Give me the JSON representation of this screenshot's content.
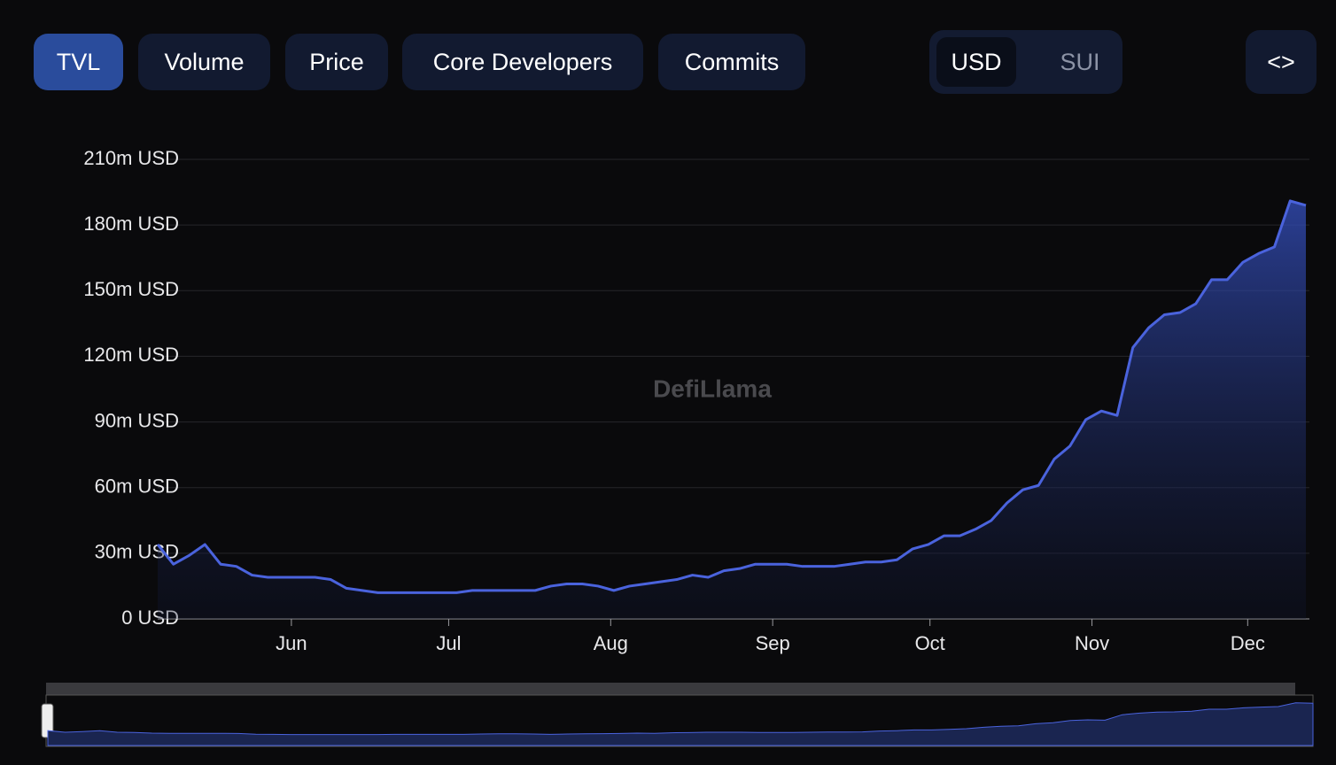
{
  "tabs": [
    "TVL",
    "Volume",
    "Price",
    "Core Developers",
    "Commits"
  ],
  "active_tab": 0,
  "currency": [
    "USD",
    "SUI"
  ],
  "active_currency": 0,
  "embed_button": "<>",
  "watermark": "DefiLlama",
  "chart_data": {
    "type": "area",
    "color": "#4a63dd",
    "grid": true,
    "values": [
      34,
      25,
      29,
      34,
      25,
      24,
      20,
      19,
      19,
      19,
      19,
      18,
      14,
      13,
      12,
      12,
      12,
      12,
      12,
      12,
      13,
      13,
      13,
      13,
      13,
      15,
      16,
      16,
      15,
      13,
      15,
      16,
      17,
      18,
      20,
      19,
      22,
      23,
      25,
      25,
      25,
      24,
      24,
      24,
      25,
      26,
      26,
      27,
      32,
      34,
      38,
      38,
      41,
      45,
      53,
      59,
      61,
      73,
      79,
      91,
      95,
      93,
      124,
      133,
      139,
      140,
      144,
      155,
      155,
      163,
      167,
      170,
      191,
      189
    ],
    "xlim": [
      0,
      73
    ],
    "xticks": [
      {
        "value": 8.5,
        "label": "Jun"
      },
      {
        "value": 18.5,
        "label": "Jul"
      },
      {
        "value": 28.8,
        "label": "Aug"
      },
      {
        "value": 39.1,
        "label": "Sep"
      },
      {
        "value": 49.1,
        "label": "Oct"
      },
      {
        "value": 59.4,
        "label": "Nov"
      },
      {
        "value": 69.3,
        "label": "Dec"
      }
    ],
    "ylim": [
      0,
      210
    ],
    "yticks": [
      {
        "value": 0,
        "label": "0 USD"
      },
      {
        "value": 30,
        "label": "30m USD"
      },
      {
        "value": 60,
        "label": "60m USD"
      },
      {
        "value": 90,
        "label": "90m USD"
      },
      {
        "value": 120,
        "label": "120m USD"
      },
      {
        "value": 150,
        "label": "150m USD"
      },
      {
        "value": 180,
        "label": "180m USD"
      },
      {
        "value": 210,
        "label": "210m USD"
      }
    ]
  }
}
